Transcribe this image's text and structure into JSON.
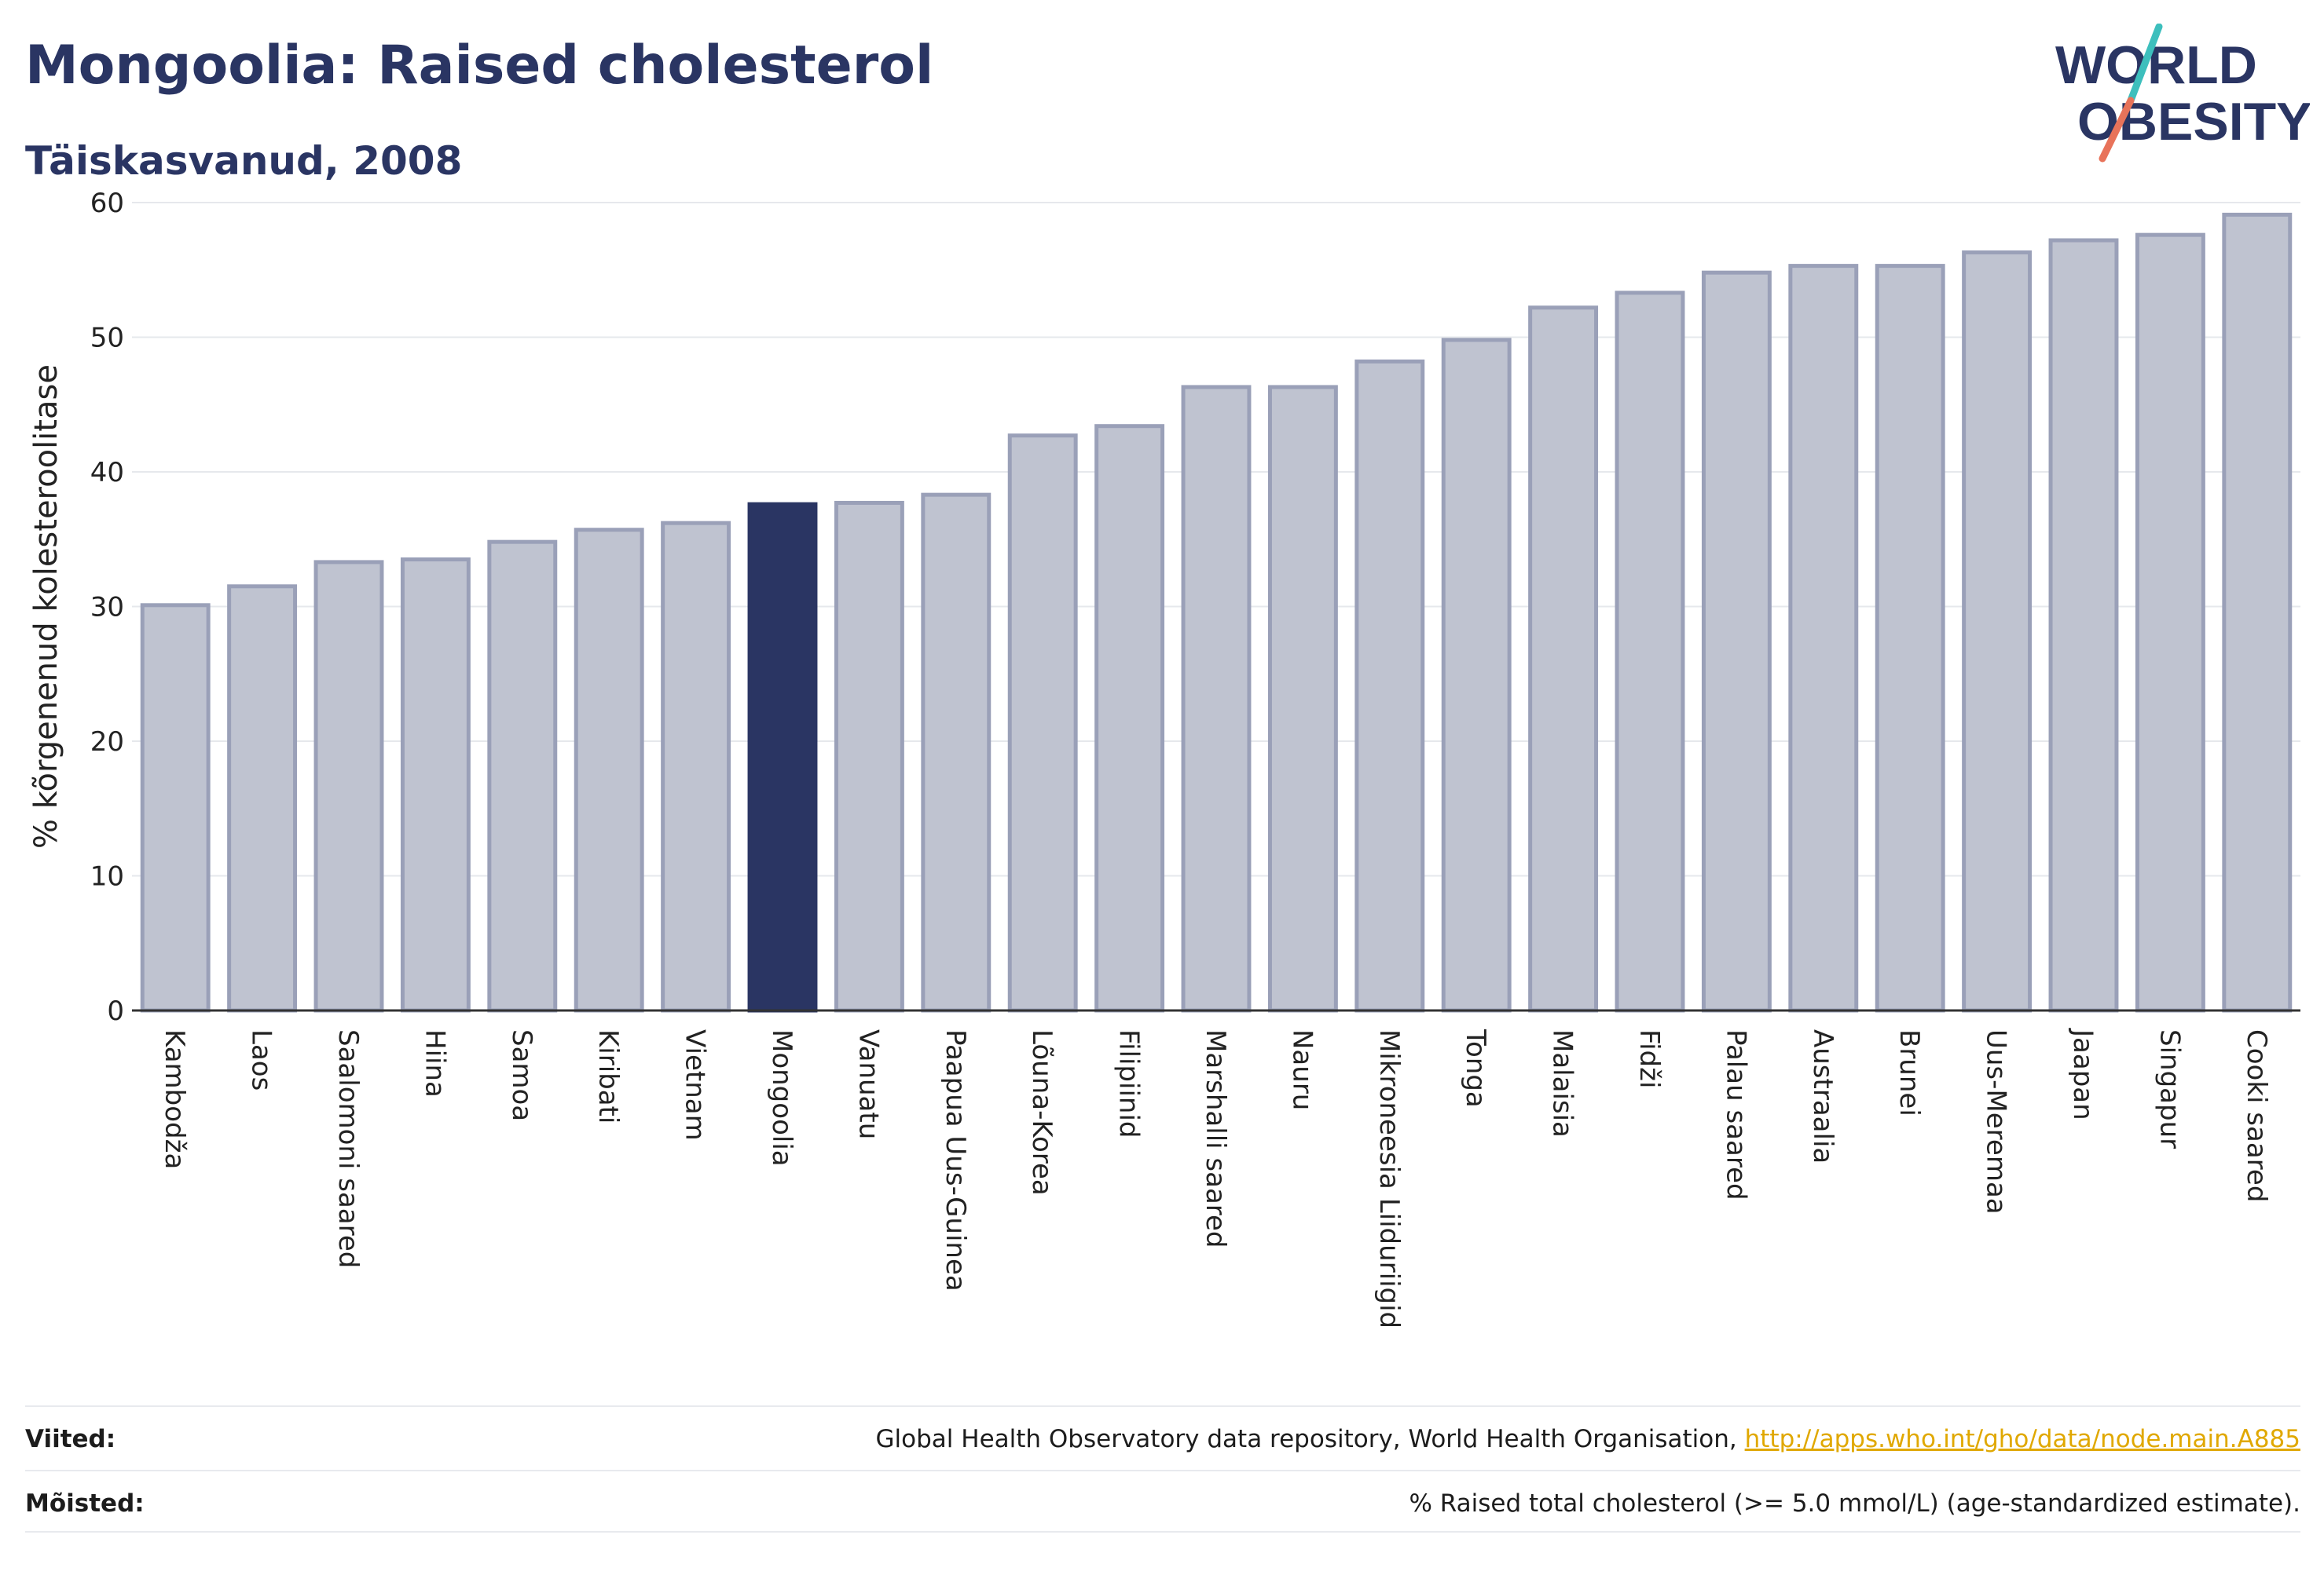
{
  "header": {
    "title": "Mongoolia: Raised cholesterol",
    "subtitle": "Täiskasvanud, 2008"
  },
  "logo": {
    "line1": "WORLD",
    "line2": "OBESITY",
    "accent_colors": [
      "#3dbfbd",
      "#e8735a"
    ]
  },
  "colors": {
    "bar": "#bfc3d0",
    "bar_stroke": "#9aa0b8",
    "highlight": "#2a3563",
    "grid": "#e6e8ec",
    "axis": "#333333"
  },
  "chart_data": {
    "type": "bar",
    "title": "Mongoolia: Raised cholesterol",
    "subtitle": "Täiskasvanud, 2008",
    "xlabel": "",
    "ylabel": "% kõrgenenud kolesteroolitase",
    "ylim": [
      0,
      60
    ],
    "yticks": [
      0,
      10,
      20,
      30,
      40,
      50,
      60
    ],
    "grid": true,
    "highlight": "Mongoolia",
    "categories": [
      "Kambodža",
      "Laos",
      "Saalomoni saared",
      "Hiina",
      "Samoa",
      "Kiribati",
      "Vietnam",
      "Mongoolia",
      "Vanuatu",
      "Paapua Uus-Guinea",
      "Lõuna-Korea",
      "Filipiinid",
      "Marshalli saared",
      "Nauru",
      "Mikroneesia Liiduriigid",
      "Tonga",
      "Malaisia",
      "Fidži",
      "Palau saared",
      "Austraalia",
      "Brunei",
      "Uus-Meremaa",
      "Jaapan",
      "Singapur",
      "Cooki saared"
    ],
    "values": [
      30.1,
      31.5,
      33.3,
      33.5,
      34.8,
      35.7,
      36.2,
      37.6,
      37.7,
      38.3,
      42.7,
      43.4,
      46.3,
      46.3,
      48.2,
      49.8,
      52.2,
      53.3,
      54.8,
      55.3,
      55.3,
      56.3,
      57.2,
      57.6,
      59.1
    ]
  },
  "footer": {
    "sources_label": "Viited:",
    "sources_text": "Global Health Observatory data repository, World Health Organisation,",
    "sources_link": "http://apps.who.int/gho/data/node.main.A885",
    "definitions_label": "Mõisted:",
    "definitions_text": "% Raised total cholesterol (>= 5.0 mmol/L) (age-standardized estimate)."
  }
}
